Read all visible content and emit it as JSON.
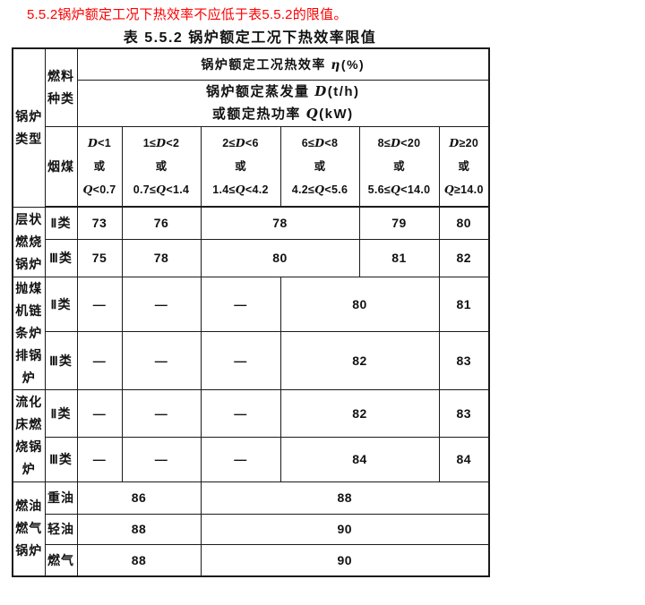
{
  "page": {
    "clause": "5.5.2锅炉额定工况下热效率不应低于表5.5.2的限值。",
    "table_title": "表 5.5.2  锅炉额定工况下热效率限值"
  },
  "table": {
    "boiler_type_header": "锅炉\n类型",
    "fuel_kind_header": "燃料\n种类",
    "efficiency_header": "锅炉额定工况热效率 η(%)",
    "capacity_header": {
      "line1": "锅炉额定蒸发量 D(t/h)",
      "line2": "或额定热功率 Q(kW)"
    },
    "coal_label": "烟煤",
    "range_columns": [
      {
        "d": "D<1",
        "mid": "或",
        "q": "Q<0.7"
      },
      {
        "d": "1≤D<2",
        "mid": "或",
        "q": "0.7≤Q<1.4"
      },
      {
        "d": "2≤D<6",
        "mid": "或",
        "q": "1.4≤Q<4.2"
      },
      {
        "d": "6≤D<8",
        "mid": "或",
        "q": "4.2≤Q<5.6"
      },
      {
        "d": "8≤D<20",
        "mid": "或",
        "q": "5.6≤Q<14.0"
      },
      {
        "d": "D≥20",
        "mid": "或",
        "q": "Q≥14.0"
      }
    ],
    "groups": [
      {
        "label": "层状\n燃烧\n锅炉",
        "rows": [
          {
            "fuel": "Ⅱ类",
            "values": [
              "73",
              "76",
              "78",
              "79",
              "80"
            ]
          },
          {
            "fuel": "Ⅲ类",
            "values": [
              "75",
              "78",
              "80",
              "81",
              "82"
            ]
          }
        ]
      },
      {
        "label": "抛煤\n机链\n条炉\n排锅\n炉",
        "rows": [
          {
            "fuel": "Ⅱ类",
            "values": [
              "—",
              "—",
              "—",
              "80",
              "81"
            ]
          },
          {
            "fuel": "Ⅲ类",
            "values": [
              "—",
              "—",
              "—",
              "82",
              "83"
            ]
          }
        ]
      },
      {
        "label": "流化\n床燃\n烧锅\n炉",
        "rows": [
          {
            "fuel": "Ⅱ类",
            "values": [
              "—",
              "—",
              "—",
              "82",
              "83"
            ]
          },
          {
            "fuel": "Ⅲ类",
            "values": [
              "—",
              "—",
              "—",
              "84",
              "84"
            ]
          }
        ]
      },
      {
        "label": "燃油\n燃气\n锅炉",
        "rows": [
          {
            "fuel": "重油",
            "values": [
              "86",
              "88"
            ]
          },
          {
            "fuel": "轻油",
            "values": [
              "88",
              "90"
            ]
          },
          {
            "fuel": "燃气",
            "values": [
              "88",
              "90"
            ]
          }
        ]
      }
    ]
  }
}
